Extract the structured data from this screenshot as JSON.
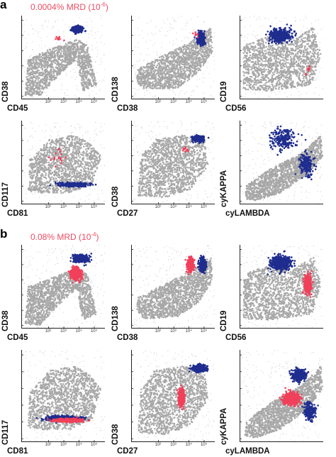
{
  "figure": {
    "section_a": {
      "letter": "a",
      "mrd_text": "0.0004% MRD (10",
      "mrd_exp": "-6",
      "mrd_close": ")"
    },
    "section_b": {
      "letter": "b",
      "mrd_text": "0.08% MRD (10",
      "mrd_exp": "-4",
      "mrd_close": ")"
    }
  },
  "colors": {
    "background_cells": "#a7a7a7",
    "normal_plasma_cells": "#1f2d8f",
    "abnormal_plasma_cells": "#f0405a",
    "mrd_text": "#ee4b62"
  },
  "chart_data": [
    {
      "type": "scatter",
      "section": "a",
      "xlabel": "CD45",
      "ylabel": "CD38",
      "x_tick_labels": [
        "10²",
        "10³",
        "10⁴",
        "10⁵"
      ],
      "series": [
        {
          "color": "normal_plasma_cells",
          "center": [
            3.7,
            4.6
          ],
          "spread": "tight"
        },
        {
          "color": "abnormal_plasma_cells",
          "center": [
            2.5,
            4.0
          ],
          "spread": "rare events"
        }
      ]
    },
    {
      "type": "scatter",
      "section": "a",
      "xlabel": "CD38",
      "ylabel": "CD138",
      "x_tick_labels": [
        "10²",
        "10³",
        "10⁴",
        "10⁵"
      ],
      "series": [
        {
          "color": "normal_plasma_cells",
          "center": [
            4.6,
            4.0
          ]
        },
        {
          "color": "abnormal_plasma_cells",
          "center": [
            4.3,
            4.2
          ],
          "spread": "rare events"
        }
      ]
    },
    {
      "type": "scatter",
      "section": "a",
      "xlabel": "CD56",
      "ylabel": "CD19",
      "series": [
        {
          "color": "normal_plasma_cells",
          "center": [
            2.7,
            4.2
          ]
        },
        {
          "color": "abnormal_plasma_cells",
          "center": [
            4.5,
            2.0
          ],
          "spread": "rare events"
        }
      ]
    },
    {
      "type": "scatter",
      "section": "a",
      "xlabel": "CD81",
      "ylabel": "CD117",
      "x_tick_labels": [
        "10²",
        "10³",
        "10⁴",
        "10⁵"
      ],
      "series": [
        {
          "color": "normal_plasma_cells",
          "center": [
            3.4,
            1.3
          ]
        },
        {
          "color": "abnormal_plasma_cells",
          "center": [
            2.4,
            3.1
          ],
          "spread": "rare events"
        }
      ]
    },
    {
      "type": "scatter",
      "section": "a",
      "xlabel": "CD27",
      "ylabel": "CD38",
      "x_tick_labels": [
        "10²",
        "10³",
        "10⁴",
        "10⁵"
      ],
      "series": [
        {
          "color": "normal_plasma_cells",
          "center": [
            4.4,
            4.3
          ]
        },
        {
          "color": "abnormal_plasma_cells",
          "center": [
            3.6,
            3.6
          ],
          "spread": "rare events"
        }
      ]
    },
    {
      "type": "scatter",
      "section": "a",
      "xlabel": "cyLAMBDA",
      "ylabel": "cyKAPPA",
      "series": [
        {
          "color": "normal_plasma_cells",
          "center": [
            2.9,
            4.3
          ]
        },
        {
          "color": "normal_plasma_cells",
          "center": [
            4.4,
            2.6
          ]
        }
      ]
    },
    {
      "type": "scatter",
      "section": "b",
      "xlabel": "CD45",
      "ylabel": "CD38",
      "x_tick_labels": [
        "10²",
        "10³",
        "10⁴",
        "10⁵"
      ],
      "series": [
        {
          "color": "normal_plasma_cells",
          "center": [
            3.9,
            4.6
          ]
        },
        {
          "color": "abnormal_plasma_cells",
          "center": [
            3.6,
            3.6
          ]
        }
      ]
    },
    {
      "type": "scatter",
      "section": "b",
      "xlabel": "CD38",
      "ylabel": "CD138",
      "x_tick_labels": [
        "10²",
        "10³",
        "10⁴",
        "10⁵"
      ],
      "series": [
        {
          "color": "abnormal_plasma_cells",
          "center": [
            3.9,
            4.2
          ]
        },
        {
          "color": "normal_plasma_cells",
          "center": [
            4.7,
            4.2
          ]
        }
      ]
    },
    {
      "type": "scatter",
      "section": "b",
      "xlabel": "CD56",
      "ylabel": "CD19",
      "series": [
        {
          "color": "normal_plasma_cells",
          "center": [
            2.7,
            4.3
          ]
        },
        {
          "color": "abnormal_plasma_cells",
          "center": [
            4.5,
            2.9
          ]
        }
      ]
    },
    {
      "type": "scatter",
      "section": "b",
      "xlabel": "CD81",
      "ylabel": "CD117",
      "x_tick_labels": [
        "10²",
        "10³",
        "10⁴",
        "10⁵"
      ],
      "series": [
        {
          "color": "normal_plasma_cells",
          "center": [
            2.8,
            1.4
          ]
        },
        {
          "color": "abnormal_plasma_cells",
          "center": [
            3.1,
            1.3
          ]
        }
      ]
    },
    {
      "type": "scatter",
      "section": "b",
      "xlabel": "CD27",
      "ylabel": "CD38",
      "x_tick_labels": [
        "10²",
        "10³",
        "10⁴",
        "10⁵"
      ],
      "series": [
        {
          "color": "normal_plasma_cells",
          "center": [
            4.5,
            4.4
          ]
        },
        {
          "color": "abnormal_plasma_cells",
          "center": [
            3.3,
            2.7
          ]
        }
      ]
    },
    {
      "type": "scatter",
      "section": "b",
      "xlabel": "cyLAMBDA",
      "ylabel": "cyKAPPA",
      "series": [
        {
          "color": "normal_plasma_cells",
          "center": [
            3.9,
            4.0
          ]
        },
        {
          "color": "abnormal_plasma_cells",
          "center": [
            3.4,
            2.6
          ]
        },
        {
          "color": "normal_plasma_cells",
          "center": [
            4.6,
            1.8
          ]
        }
      ]
    }
  ]
}
